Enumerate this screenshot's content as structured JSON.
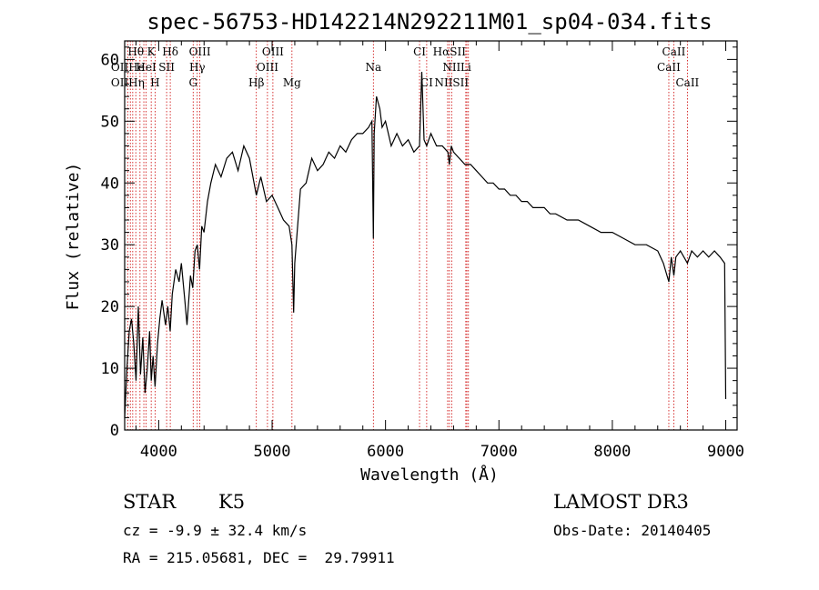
{
  "chart_data": {
    "type": "line",
    "title": "spec-56753-HD142214N292211M01_sp04-034.fits",
    "xlabel": "Wavelength (Å)",
    "ylabel": "Flux (relative)",
    "xlim": [
      3700,
      9100
    ],
    "ylim": [
      0,
      63
    ],
    "xticks": [
      4000,
      5000,
      6000,
      7000,
      8000,
      9000
    ],
    "yticks": [
      0,
      10,
      20,
      30,
      40,
      50,
      60
    ],
    "grid": false,
    "series": [
      {
        "name": "flux",
        "x": [
          3700,
          3720,
          3740,
          3760,
          3780,
          3800,
          3820,
          3840,
          3860,
          3880,
          3900,
          3920,
          3934,
          3950,
          3968,
          3990,
          4010,
          4030,
          4060,
          4080,
          4101,
          4120,
          4150,
          4180,
          4200,
          4230,
          4250,
          4280,
          4300,
          4320,
          4340,
          4360,
          4380,
          4400,
          4430,
          4460,
          4500,
          4550,
          4600,
          4650,
          4700,
          4750,
          4800,
          4861,
          4900,
          4950,
          5000,
          5050,
          5100,
          5150,
          5175,
          5190,
          5200,
          5250,
          5300,
          5350,
          5400,
          5450,
          5500,
          5550,
          5600,
          5650,
          5700,
          5750,
          5800,
          5850,
          5880,
          5893,
          5900,
          5920,
          5950,
          5970,
          6000,
          6050,
          6100,
          6150,
          6200,
          6250,
          6300,
          6320,
          6340,
          6363,
          6400,
          6450,
          6500,
          6550,
          6563,
          6580,
          6600,
          6650,
          6700,
          6750,
          6800,
          6850,
          6900,
          6950,
          7000,
          7050,
          7100,
          7150,
          7200,
          7250,
          7300,
          7350,
          7400,
          7450,
          7500,
          7600,
          7700,
          7800,
          7900,
          8000,
          8100,
          8200,
          8300,
          8400,
          8450,
          8498,
          8520,
          8542,
          8560,
          8600,
          8662,
          8700,
          8750,
          8800,
          8850,
          8900,
          8950,
          8990,
          9000
        ],
        "y": [
          2,
          10,
          16,
          18,
          14,
          8,
          20,
          9,
          15,
          6,
          10,
          16,
          8,
          12,
          7,
          14,
          18,
          21,
          17,
          20,
          16,
          22,
          26,
          24,
          27,
          21,
          17,
          25,
          23,
          29,
          30,
          26,
          33,
          32,
          37,
          40,
          43,
          41,
          44,
          45,
          42,
          46,
          44,
          38,
          41,
          37,
          38,
          36,
          34,
          33,
          30,
          19,
          27,
          39,
          40,
          44,
          42,
          43,
          45,
          44,
          46,
          45,
          47,
          48,
          48,
          49,
          50,
          31,
          48,
          54,
          52,
          49,
          50,
          46,
          48,
          46,
          47,
          45,
          46,
          58,
          47,
          46,
          48,
          46,
          46,
          45,
          43,
          46,
          45,
          44,
          43,
          43,
          42,
          41,
          40,
          40,
          39,
          39,
          38,
          38,
          37,
          37,
          36,
          36,
          36,
          35,
          35,
          34,
          34,
          33,
          32,
          32,
          31,
          30,
          30,
          29,
          27,
          24,
          28,
          25,
          28,
          29,
          27,
          29,
          28,
          29,
          28,
          29,
          28,
          27,
          5
        ]
      }
    ],
    "line_markers": [
      {
        "label": "Hθ",
        "x": 3798,
        "row": 1
      },
      {
        "label": "K",
        "x": 3934,
        "row": 1
      },
      {
        "label": "Hδ",
        "x": 4102,
        "row": 1
      },
      {
        "label": "OIII",
        "x": 4363,
        "row": 1
      },
      {
        "label": "OIII",
        "x": 5007,
        "row": 1
      },
      {
        "label": "CI",
        "x": 6300,
        "row": 1
      },
      {
        "label": "HαSII",
        "x": 6563,
        "row": 1
      },
      {
        "label": "CaII",
        "x": 8542,
        "row": 1
      },
      {
        "label": "OIIHe",
        "x": 3727,
        "row": 2
      },
      {
        "label": "HeI",
        "x": 3889,
        "row": 2
      },
      {
        "label": "SII",
        "x": 4070,
        "row": 2
      },
      {
        "label": "Hγ",
        "x": 4340,
        "row": 2
      },
      {
        "label": "OIII",
        "x": 4959,
        "row": 2
      },
      {
        "label": "Na",
        "x": 5893,
        "row": 2
      },
      {
        "label": "NII",
        "x": 6583,
        "row": 2
      },
      {
        "label": "Li",
        "x": 6708,
        "row": 2
      },
      {
        "label": "CaII",
        "x": 8498,
        "row": 2
      },
      {
        "label": "OIIHη",
        "x": 3727,
        "row": 3
      },
      {
        "label": "H",
        "x": 3968,
        "row": 3
      },
      {
        "label": "G",
        "x": 4304,
        "row": 3
      },
      {
        "label": "Hβ",
        "x": 4861,
        "row": 3
      },
      {
        "label": "Mg",
        "x": 5175,
        "row": 3
      },
      {
        "label": "CI",
        "x": 6363,
        "row": 3
      },
      {
        "label": "NIISII",
        "x": 6583,
        "row": 3
      },
      {
        "label": "CaII",
        "x": 8662,
        "row": 3
      }
    ],
    "line_positions": [
      3727,
      3750,
      3771,
      3798,
      3835,
      3869,
      3889,
      3934,
      3968,
      4070,
      4102,
      4304,
      4340,
      4363,
      4861,
      4959,
      5007,
      5175,
      5893,
      6300,
      6363,
      6548,
      6563,
      6583,
      6708,
      6717,
      6731,
      8498,
      8542,
      8662
    ],
    "annotations": {
      "object_class": "STAR",
      "subclass": "K5",
      "survey": "LAMOST DR3",
      "cz": "cz = -9.9 ± 32.4 km/s",
      "obs_date": "Obs-Date: 20140405",
      "radec": "RA = 215.05681, DEC =  29.79911"
    }
  },
  "colors": {
    "spectrum": "#000000",
    "line_markers": "#cc0000",
    "axis": "#000000"
  }
}
